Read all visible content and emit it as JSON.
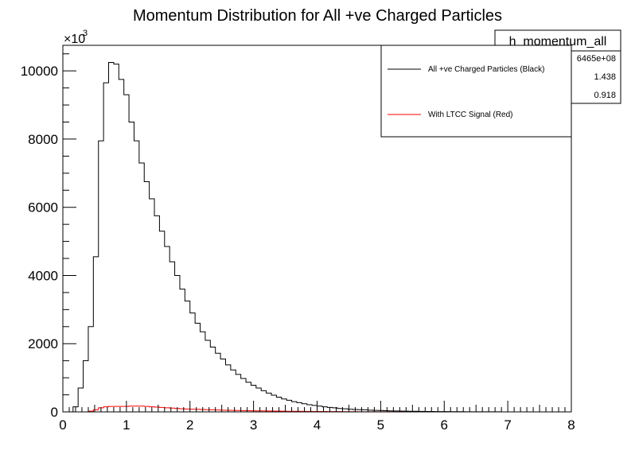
{
  "chart_data": {
    "type": "bar",
    "title": "Momentum Distribution for All +ve Charged Particles",
    "xlabel": "",
    "ylabel": "",
    "xlim": [
      0,
      8
    ],
    "ylim": [
      0,
      10.75
    ],
    "x_ticks": [
      "0",
      "1",
      "2",
      "3",
      "4",
      "5",
      "6",
      "7",
      "8"
    ],
    "y_ticks": [
      "0",
      "2000",
      "4000",
      "6000",
      "8000",
      "10000"
    ],
    "y_multiplier_base": "×10",
    "y_multiplier_exp": "3",
    "grid": false,
    "legend_position": "top-right",
    "bin_width": 0.08,
    "series": [
      {
        "name": "All +ve Charged Particles (Black)",
        "color": "#000000",
        "values": [
          0,
          0,
          0.15,
          0.7,
          1.5,
          2.5,
          4.55,
          7.95,
          9.65,
          10.25,
          10.2,
          9.75,
          9.3,
          8.5,
          7.95,
          7.3,
          6.75,
          6.25,
          5.75,
          5.3,
          4.85,
          4.4,
          4.0,
          3.6,
          3.25,
          2.9,
          2.6,
          2.35,
          2.1,
          1.9,
          1.72,
          1.55,
          1.38,
          1.23,
          1.1,
          0.98,
          0.87,
          0.78,
          0.7,
          0.62,
          0.55,
          0.49,
          0.43,
          0.38,
          0.34,
          0.3,
          0.27,
          0.24,
          0.21,
          0.19,
          0.17,
          0.15,
          0.13,
          0.12,
          0.1,
          0.09,
          0.08,
          0.07,
          0.065,
          0.06,
          0.05,
          0.045,
          0.04,
          0.035,
          0.03,
          0.027,
          0.024,
          0.021,
          0.018,
          0.016,
          0.014,
          0.012,
          0.011,
          0.01,
          0.009,
          0.008,
          0.007,
          0.006,
          0.005,
          0.004,
          0.004,
          0.003,
          0.003,
          0.002,
          0.002,
          0.002,
          0.001,
          0.001,
          0.001,
          0.001,
          0,
          0,
          0,
          0,
          0,
          0,
          0,
          0,
          0,
          0
        ]
      },
      {
        "name": "With LTCC Signal (Red)",
        "color": "#ff0000",
        "values": [
          0,
          0,
          0,
          0,
          0,
          0.02,
          0.06,
          0.12,
          0.15,
          0.16,
          0.16,
          0.16,
          0.16,
          0.17,
          0.17,
          0.17,
          0.16,
          0.15,
          0.14,
          0.13,
          0.12,
          0.11,
          0.1,
          0.09,
          0.085,
          0.08,
          0.075,
          0.07,
          0.065,
          0.06,
          0.055,
          0.05,
          0.047,
          0.044,
          0.041,
          0.038,
          0.035,
          0.032,
          0.03,
          0.028,
          0.026,
          0.024,
          0.022,
          0.02,
          0.018,
          0.017,
          0.016,
          0.015,
          0.014,
          0.013,
          0.012,
          0.011,
          0.01,
          0.009,
          0.008,
          0.007,
          0.006,
          0.005,
          0.004,
          0.004,
          0.003,
          0.003,
          0.003,
          0.002,
          0.002,
          0.002,
          0.002,
          0.001,
          0.001,
          0.001,
          0.001,
          0.001,
          0.001,
          0,
          0,
          0,
          0,
          0,
          0,
          0,
          0,
          0,
          0,
          0,
          0,
          0,
          0,
          0,
          0,
          0,
          0,
          0,
          0,
          0,
          0,
          0,
          0,
          0,
          0,
          0
        ]
      }
    ],
    "stats_box": {
      "title": "h_momentum_all",
      "values": [
        "6465e+08",
        "1.438",
        "0.918"
      ]
    }
  }
}
